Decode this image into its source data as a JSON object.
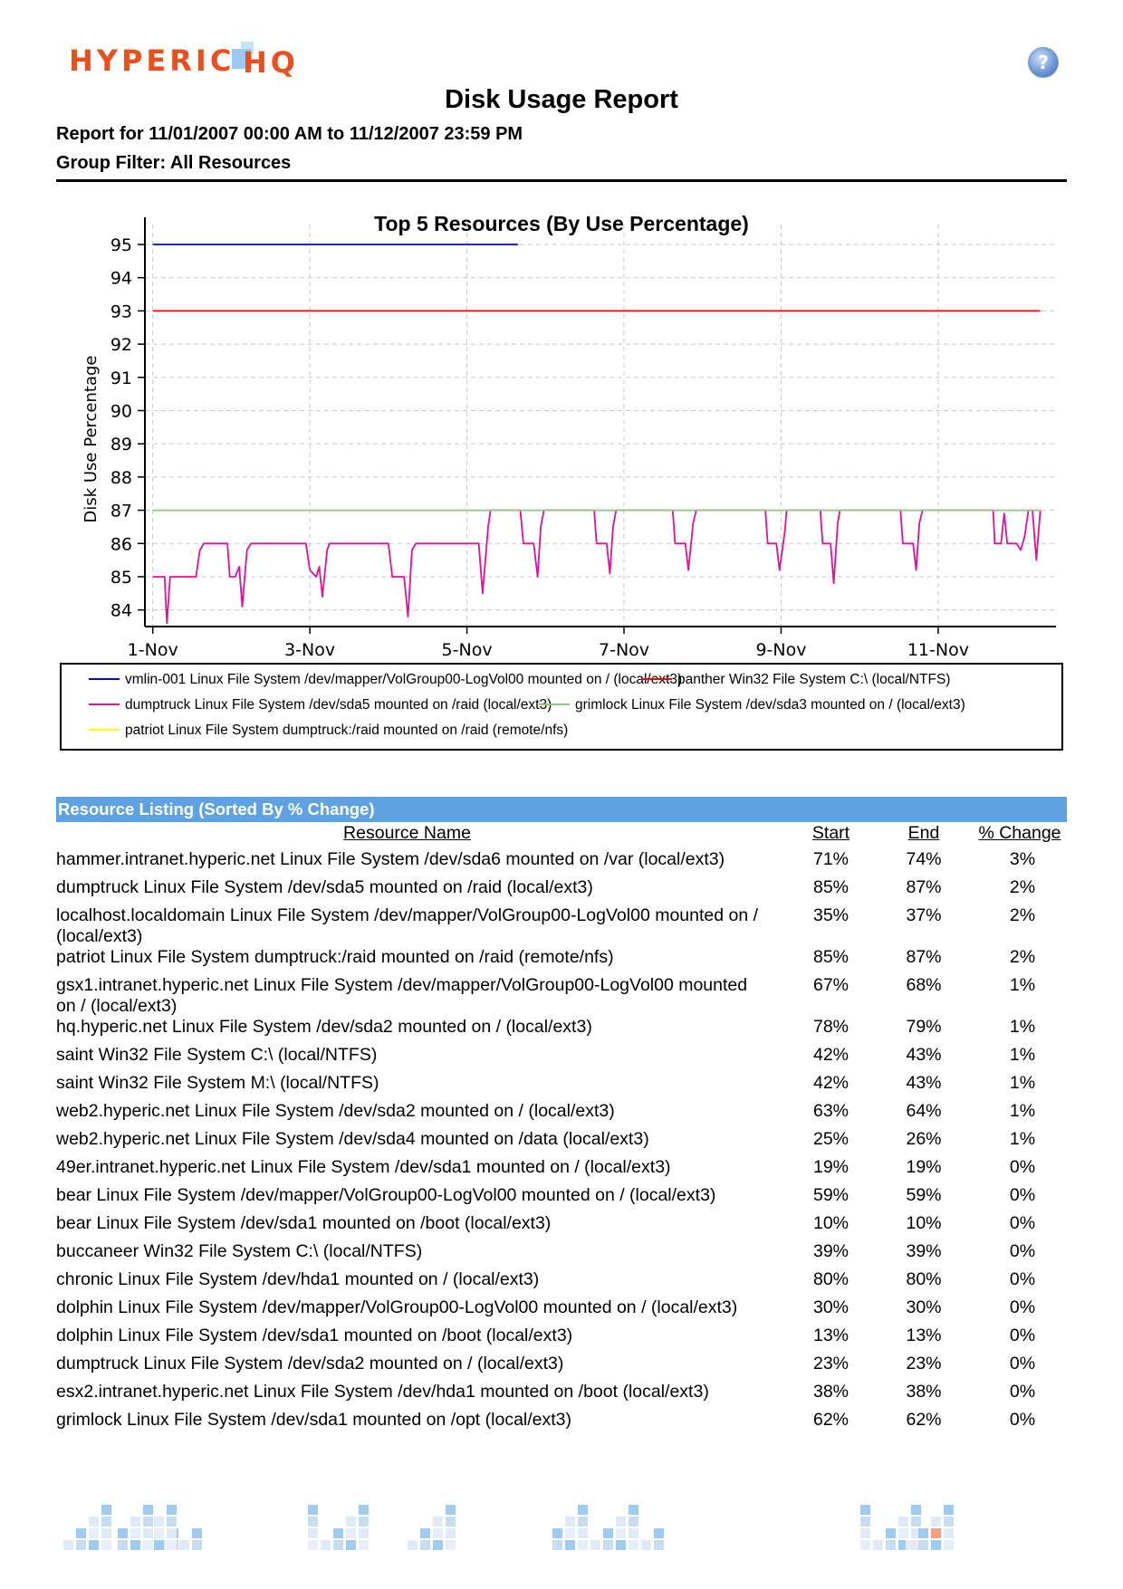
{
  "header": {
    "logo_text": "HYPERIC HQ",
    "help_icon": "question-mark-icon",
    "title": "Disk Usage Report",
    "range": "Report for 11/01/2007 00:00 AM to 11/12/2007 23:59 PM",
    "filter": "Group Filter: All Resources"
  },
  "colors": {
    "brand_orange": "#e8511e",
    "section_bar": "#5ea2e3"
  },
  "chart_data": {
    "type": "line",
    "title": "Top 5 Resources (By Use Percentage)",
    "xlabel": "",
    "ylabel": "Disk Use Percentage",
    "x_ticks": [
      "1-Nov",
      "3-Nov",
      "5-Nov",
      "7-Nov",
      "9-Nov",
      "11-Nov"
    ],
    "x_range_days": [
      0.9,
      12.5
    ],
    "ylim": [
      83.5,
      95.6
    ],
    "y_ticks": [
      84,
      85,
      86,
      87,
      88,
      89,
      90,
      91,
      92,
      93,
      94,
      95
    ],
    "grid": true,
    "legend_placement": "bottom",
    "series": [
      {
        "name": "vmlin-001 Linux File System /dev/mapper/VolGroup00-LogVol00 mounted on / (local/ext3)",
        "color": "#0000ff",
        "points": [
          [
            1.0,
            95
          ],
          [
            5.65,
            95
          ]
        ]
      },
      {
        "name": "panther Win32 File System C:\\ (local/NTFS)",
        "color": "#ff0000",
        "points": [
          [
            1.0,
            93
          ],
          [
            12.3,
            93
          ]
        ]
      },
      {
        "name": "dumptruck Linux File System /dev/sda5 mounted on /raid (local/ext3)",
        "color": "#e0109a",
        "points": [
          [
            1.0,
            85
          ],
          [
            1.1,
            85
          ],
          [
            1.15,
            85
          ],
          [
            1.18,
            83.6
          ],
          [
            1.22,
            85
          ],
          [
            1.55,
            85
          ],
          [
            1.6,
            85.8
          ],
          [
            1.65,
            86
          ],
          [
            1.95,
            86
          ],
          [
            1.98,
            85
          ],
          [
            2.05,
            85
          ],
          [
            2.1,
            85.3
          ],
          [
            2.14,
            84.1
          ],
          [
            2.2,
            85.8
          ],
          [
            2.25,
            86
          ],
          [
            2.95,
            86
          ],
          [
            3.0,
            85.2
          ],
          [
            3.08,
            85
          ],
          [
            3.12,
            85.3
          ],
          [
            3.16,
            84.4
          ],
          [
            3.22,
            85.8
          ],
          [
            3.25,
            86
          ],
          [
            4.0,
            86
          ],
          [
            4.05,
            85
          ],
          [
            4.2,
            85
          ],
          [
            4.25,
            83.8
          ],
          [
            4.3,
            85.8
          ],
          [
            4.35,
            86
          ],
          [
            5.15,
            86
          ],
          [
            5.2,
            84.5
          ],
          [
            5.27,
            86.5
          ],
          [
            5.3,
            87
          ],
          [
            5.68,
            87
          ],
          [
            5.72,
            86
          ],
          [
            5.85,
            86
          ],
          [
            5.9,
            85
          ],
          [
            5.94,
            86.5
          ],
          [
            5.98,
            87
          ],
          [
            6.62,
            87
          ],
          [
            6.65,
            86
          ],
          [
            6.78,
            86
          ],
          [
            6.82,
            85.1
          ],
          [
            6.86,
            86.5
          ],
          [
            6.9,
            87
          ],
          [
            7.62,
            87
          ],
          [
            7.65,
            86
          ],
          [
            7.78,
            86
          ],
          [
            7.82,
            85.2
          ],
          [
            7.88,
            86.6
          ],
          [
            7.92,
            87
          ],
          [
            8.8,
            87
          ],
          [
            8.83,
            86
          ],
          [
            8.94,
            86
          ],
          [
            8.98,
            85.2
          ],
          [
            9.05,
            86.4
          ],
          [
            9.07,
            87
          ],
          [
            9.5,
            87
          ],
          [
            9.53,
            86
          ],
          [
            9.63,
            86
          ],
          [
            9.67,
            84.8
          ],
          [
            9.72,
            86.6
          ],
          [
            9.75,
            87
          ],
          [
            10.52,
            87
          ],
          [
            10.55,
            86
          ],
          [
            10.68,
            86
          ],
          [
            10.72,
            85.2
          ],
          [
            10.76,
            86.6
          ],
          [
            10.8,
            87
          ],
          [
            11.7,
            87
          ],
          [
            11.72,
            86
          ],
          [
            11.8,
            86
          ],
          [
            11.84,
            86.9
          ],
          [
            11.88,
            86
          ],
          [
            12.0,
            86
          ],
          [
            12.05,
            85.8
          ],
          [
            12.1,
            86.2
          ],
          [
            12.15,
            87
          ],
          [
            12.2,
            87
          ],
          [
            12.25,
            85.5
          ],
          [
            12.3,
            87
          ]
        ]
      },
      {
        "name": "grimlock Linux File System /dev/sda3 mounted on / (local/ext3)",
        "color": "#8cc878",
        "points": [
          [
            1.0,
            87
          ],
          [
            12.3,
            87
          ]
        ]
      },
      {
        "name": "patriot Linux File System dumptruck:/raid mounted on /raid (remote/nfs)",
        "color": "#ffff00",
        "points": []
      }
    ]
  },
  "listing": {
    "section_title": "Resource Listing (Sorted By % Change)",
    "columns": [
      "Resource Name",
      "Start",
      "End",
      "% Change"
    ],
    "rows": [
      {
        "name": "hammer.intranet.hyperic.net Linux File System /dev/sda6 mounted on /var (local/ext3)",
        "start": "71%",
        "end": "74%",
        "change": "3%"
      },
      {
        "name": "dumptruck Linux File System /dev/sda5 mounted on /raid (local/ext3)",
        "start": "85%",
        "end": "87%",
        "change": "2%"
      },
      {
        "name": "localhost.localdomain Linux File System /dev/mapper/VolGroup00-LogVol00 mounted on / (local/ext3)",
        "start": "35%",
        "end": "37%",
        "change": "2%"
      },
      {
        "name": "patriot Linux File System dumptruck:/raid mounted on /raid (remote/nfs)",
        "start": "85%",
        "end": "87%",
        "change": "2%"
      },
      {
        "name": "gsx1.intranet.hyperic.net Linux File System /dev/mapper/VolGroup00-LogVol00 mounted on / (local/ext3)",
        "start": "67%",
        "end": "68%",
        "change": "1%"
      },
      {
        "name": "hq.hyperic.net Linux File System /dev/sda2 mounted on / (local/ext3)",
        "start": "78%",
        "end": "79%",
        "change": "1%"
      },
      {
        "name": "saint Win32 File System C:\\ (local/NTFS)",
        "start": "42%",
        "end": "43%",
        "change": "1%"
      },
      {
        "name": "saint Win32 File System M:\\ (local/NTFS)",
        "start": "42%",
        "end": "43%",
        "change": "1%"
      },
      {
        "name": "web2.hyperic.net Linux File System /dev/sda2 mounted on / (local/ext3)",
        "start": "63%",
        "end": "64%",
        "change": "1%"
      },
      {
        "name": "web2.hyperic.net Linux File System /dev/sda4 mounted on /data (local/ext3)",
        "start": "25%",
        "end": "26%",
        "change": "1%"
      },
      {
        "name": "49er.intranet.hyperic.net Linux File System /dev/sda1 mounted on / (local/ext3)",
        "start": "19%",
        "end": "19%",
        "change": "0%"
      },
      {
        "name": "bear Linux File System /dev/mapper/VolGroup00-LogVol00 mounted on / (local/ext3)",
        "start": "59%",
        "end": "59%",
        "change": "0%"
      },
      {
        "name": "bear Linux File System /dev/sda1 mounted on /boot (local/ext3)",
        "start": "10%",
        "end": "10%",
        "change": "0%"
      },
      {
        "name": "buccaneer Win32 File System C:\\ (local/NTFS)",
        "start": "39%",
        "end": "39%",
        "change": "0%"
      },
      {
        "name": "chronic Linux File System /dev/hda1 mounted on / (local/ext3)",
        "start": "80%",
        "end": "80%",
        "change": "0%"
      },
      {
        "name": "dolphin Linux File System /dev/mapper/VolGroup00-LogVol00 mounted on / (local/ext3)",
        "start": "30%",
        "end": "30%",
        "change": "0%"
      },
      {
        "name": "dolphin Linux File System /dev/sda1 mounted on /boot (local/ext3)",
        "start": "13%",
        "end": "13%",
        "change": "0%"
      },
      {
        "name": "dumptruck Linux File System /dev/sda2 mounted on / (local/ext3)",
        "start": "23%",
        "end": "23%",
        "change": "0%"
      },
      {
        "name": "esx2.intranet.hyperic.net Linux File System /dev/hda1 mounted on /boot (local/ext3)",
        "start": "38%",
        "end": "38%",
        "change": "0%"
      },
      {
        "name": "grimlock Linux File System /dev/sda1 mounted on /opt (local/ext3)",
        "start": "62%",
        "end": "62%",
        "change": "0%"
      }
    ]
  }
}
